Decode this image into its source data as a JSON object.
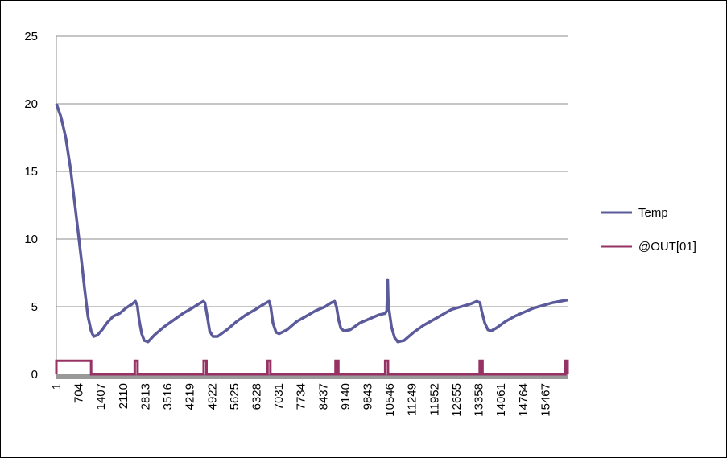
{
  "chart_data": {
    "type": "line",
    "title": "",
    "xlabel": "",
    "ylabel": "",
    "ylim": [
      0,
      25
    ],
    "yticks": [
      0,
      5,
      10,
      15,
      20,
      25
    ],
    "xlim": [
      1,
      16170
    ],
    "xticks": [
      1,
      704,
      1407,
      2110,
      2813,
      3516,
      4219,
      4922,
      5625,
      6328,
      7031,
      7734,
      8437,
      9140,
      9843,
      10546,
      11249,
      11952,
      12655,
      13358,
      14061,
      14764,
      15467
    ],
    "grid": true,
    "legend": "right",
    "colors": {
      "temp": "#5b5a9a",
      "out": "#963264",
      "baseline": "#999999"
    },
    "series": [
      {
        "name": "Temp",
        "points": [
          [
            1,
            20.0
          ],
          [
            150,
            19.0
          ],
          [
            300,
            17.5
          ],
          [
            450,
            15.2
          ],
          [
            600,
            12.3
          ],
          [
            700,
            10.3
          ],
          [
            800,
            8.3
          ],
          [
            900,
            6.2
          ],
          [
            1000,
            4.3
          ],
          [
            1100,
            3.2
          ],
          [
            1180,
            2.8
          ],
          [
            1300,
            2.9
          ],
          [
            1450,
            3.3
          ],
          [
            1600,
            3.8
          ],
          [
            1800,
            4.3
          ],
          [
            2000,
            4.5
          ],
          [
            2200,
            4.9
          ],
          [
            2400,
            5.2
          ],
          [
            2500,
            5.4
          ],
          [
            2560,
            5.1
          ],
          [
            2620,
            4.0
          ],
          [
            2700,
            3.0
          ],
          [
            2780,
            2.5
          ],
          [
            2900,
            2.4
          ],
          [
            3100,
            2.9
          ],
          [
            3400,
            3.5
          ],
          [
            3700,
            4.0
          ],
          [
            4000,
            4.5
          ],
          [
            4300,
            4.9
          ],
          [
            4500,
            5.2
          ],
          [
            4650,
            5.4
          ],
          [
            4700,
            5.3
          ],
          [
            4780,
            4.2
          ],
          [
            4850,
            3.2
          ],
          [
            4950,
            2.8
          ],
          [
            5100,
            2.8
          ],
          [
            5400,
            3.3
          ],
          [
            5700,
            3.9
          ],
          [
            6000,
            4.4
          ],
          [
            6300,
            4.8
          ],
          [
            6500,
            5.1
          ],
          [
            6650,
            5.3
          ],
          [
            6730,
            5.4
          ],
          [
            6780,
            5.0
          ],
          [
            6850,
            3.8
          ],
          [
            6950,
            3.1
          ],
          [
            7050,
            3.0
          ],
          [
            7300,
            3.3
          ],
          [
            7600,
            3.9
          ],
          [
            7900,
            4.3
          ],
          [
            8200,
            4.7
          ],
          [
            8500,
            5.0
          ],
          [
            8700,
            5.3
          ],
          [
            8800,
            5.4
          ],
          [
            8860,
            5.0
          ],
          [
            8930,
            4.0
          ],
          [
            9000,
            3.4
          ],
          [
            9100,
            3.2
          ],
          [
            9300,
            3.3
          ],
          [
            9600,
            3.8
          ],
          [
            9900,
            4.1
          ],
          [
            10200,
            4.4
          ],
          [
            10400,
            4.5
          ],
          [
            10450,
            4.7
          ],
          [
            10480,
            7.0
          ],
          [
            10500,
            5.3
          ],
          [
            10540,
            4.5
          ],
          [
            10600,
            3.5
          ],
          [
            10700,
            2.7
          ],
          [
            10800,
            2.4
          ],
          [
            11000,
            2.5
          ],
          [
            11300,
            3.1
          ],
          [
            11600,
            3.6
          ],
          [
            11900,
            4.0
          ],
          [
            12200,
            4.4
          ],
          [
            12500,
            4.8
          ],
          [
            12800,
            5.0
          ],
          [
            13100,
            5.2
          ],
          [
            13300,
            5.4
          ],
          [
            13400,
            5.3
          ],
          [
            13450,
            4.7
          ],
          [
            13550,
            3.8
          ],
          [
            13650,
            3.3
          ],
          [
            13750,
            3.2
          ],
          [
            13900,
            3.4
          ],
          [
            14200,
            3.9
          ],
          [
            14500,
            4.3
          ],
          [
            14800,
            4.6
          ],
          [
            15100,
            4.9
          ],
          [
            15400,
            5.1
          ],
          [
            15700,
            5.3
          ],
          [
            16170,
            5.5
          ]
        ]
      },
      {
        "name": "@OUT[01]",
        "pulses": [
          [
            1,
            1100
          ],
          [
            2480,
            2570
          ],
          [
            4660,
            4750
          ],
          [
            6680,
            6770
          ],
          [
            8830,
            8920
          ],
          [
            10400,
            10490
          ],
          [
            13390,
            13480
          ],
          [
            16100,
            16170
          ]
        ],
        "high": 1,
        "low": 0
      }
    ]
  }
}
